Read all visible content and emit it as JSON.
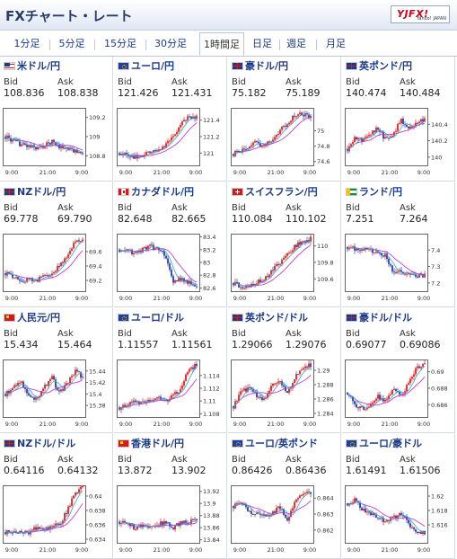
{
  "header": {
    "title": "FXチャート・レート",
    "logo": "YJFX!",
    "logo_sub": "Yahoo! JAPAN"
  },
  "tabs": [
    {
      "label": "1分足"
    },
    {
      "label": "5分足"
    },
    {
      "label": "15分足"
    },
    {
      "label": "30分足"
    },
    {
      "label": "1時間足",
      "active": true
    },
    {
      "label": "日足"
    },
    {
      "label": "週足"
    },
    {
      "label": "月足"
    }
  ],
  "labels": {
    "bid": "Bid",
    "ask": "Ask"
  },
  "colors": {
    "up": "#e02020",
    "down": "#2a3fa8",
    "ma": "#c02ad0",
    "ma2": "#2fa8c8",
    "link": "#1a3a8a"
  },
  "panels": [
    {
      "pair": "米ドル/円",
      "bid": "108.836",
      "ask": "108.838",
      "flag": "us-flag",
      "ticks": [
        "109.2",
        "109",
        "108.8"
      ],
      "x": [
        "9:00",
        "21:00",
        "9:00"
      ],
      "range": [
        108.7,
        109.3
      ],
      "trend": [
        109.0,
        108.95,
        108.92,
        108.9,
        108.88,
        108.9,
        108.95,
        108.9,
        108.87,
        108.85,
        108.84
      ]
    },
    {
      "pair": "ユーロ/円",
      "bid": "121.426",
      "ask": "121.431",
      "flag": "eu-flag",
      "ticks": [
        "121.4",
        "121.2",
        "121"
      ],
      "x": [
        "9:00",
        "21:00",
        "9:00"
      ],
      "range": [
        120.85,
        121.55
      ],
      "trend": [
        121.0,
        120.98,
        120.95,
        120.97,
        121.0,
        121.05,
        121.1,
        121.2,
        121.35,
        121.45,
        121.43
      ]
    },
    {
      "pair": "豪ドル/円",
      "bid": "75.182",
      "ask": "75.189",
      "flag": "au-flag",
      "ticks": [
        "75",
        "74.8",
        "74.6"
      ],
      "x": [
        "9:00",
        "21:00",
        "9:00"
      ],
      "range": [
        74.55,
        75.3
      ],
      "trend": [
        74.7,
        74.75,
        74.8,
        74.85,
        74.8,
        74.9,
        75.0,
        75.1,
        75.2,
        75.22,
        75.18
      ]
    },
    {
      "pair": "英ポンド/円",
      "bid": "140.474",
      "ask": "140.484",
      "flag": "uk-flag",
      "ticks": [
        "140.4",
        "140.2",
        "140"
      ],
      "x": [
        "9:00",
        "21:00",
        "9:00"
      ],
      "range": [
        139.9,
        140.6
      ],
      "trend": [
        140.1,
        140.25,
        140.2,
        140.3,
        140.35,
        140.2,
        140.3,
        140.45,
        140.35,
        140.4,
        140.47
      ]
    },
    {
      "pair": "NZドル/円",
      "bid": "69.778",
      "ask": "69.790",
      "flag": "nz-flag",
      "ticks": [
        "69.6",
        "69.4",
        "69.2"
      ],
      "x": [
        "9:00",
        "21:00",
        "9:00"
      ],
      "range": [
        69.05,
        69.85
      ],
      "trend": [
        69.3,
        69.25,
        69.2,
        69.22,
        69.2,
        69.25,
        69.3,
        69.4,
        69.55,
        69.75,
        69.78
      ]
    },
    {
      "pair": "カナダドル/円",
      "bid": "82.648",
      "ask": "82.665",
      "flag": "ca-flag",
      "ticks": [
        "83.4",
        "83.2",
        "83",
        "82.8",
        "82.6"
      ],
      "x": [
        "9:00",
        "21:00",
        "9:00"
      ],
      "range": [
        82.55,
        83.45
      ],
      "trend": [
        83.2,
        83.18,
        83.15,
        83.2,
        83.25,
        83.2,
        83.1,
        82.7,
        82.75,
        82.68,
        82.65
      ]
    },
    {
      "pair": "スイスフラン/円",
      "bid": "110.084",
      "ask": "110.102",
      "flag": "ch-flag",
      "ticks": [
        "110",
        "109.8",
        "109.6"
      ],
      "x": [
        "9:00",
        "21:00",
        "9:00"
      ],
      "range": [
        109.45,
        110.15
      ],
      "trend": [
        109.55,
        109.5,
        109.52,
        109.55,
        109.6,
        109.7,
        109.8,
        109.9,
        110.0,
        110.05,
        110.09
      ]
    },
    {
      "pair": "ランド/円",
      "bid": "7.251",
      "ask": "7.264",
      "flag": "za-flag",
      "ticks": [
        "7.4",
        "7.3",
        "7.2"
      ],
      "x": [
        "9:00",
        "21:00",
        "9:00"
      ],
      "range": [
        7.15,
        7.5
      ],
      "trend": [
        7.42,
        7.41,
        7.4,
        7.4,
        7.38,
        7.37,
        7.25,
        7.27,
        7.25,
        7.24,
        7.25
      ]
    },
    {
      "pair": "人民元/円",
      "bid": "15.434",
      "ask": "15.464",
      "flag": "cn-flag",
      "ticks": [
        "15.44",
        "15.42",
        "15.4",
        "15.38"
      ],
      "x": [
        "9:00",
        "21:00",
        "9:00"
      ],
      "range": [
        15.36,
        15.46
      ],
      "trend": [
        15.4,
        15.41,
        15.42,
        15.4,
        15.39,
        15.41,
        15.43,
        15.4,
        15.42,
        15.44,
        15.43
      ]
    },
    {
      "pair": "ユーロ/ドル",
      "bid": "1.11557",
      "ask": "1.11561",
      "flag": "eu-flag",
      "ticks": [
        "1.114",
        "1.112",
        "1.11",
        "1.108"
      ],
      "x": [
        "9:00",
        "21:00",
        "9:00"
      ],
      "range": [
        1.1075,
        1.1165
      ],
      "trend": [
        1.109,
        1.1095,
        1.11,
        1.1098,
        1.1102,
        1.1105,
        1.11,
        1.111,
        1.112,
        1.115,
        1.1156
      ]
    },
    {
      "pair": "英ポンド/ドル",
      "bid": "1.29066",
      "ask": "1.29076",
      "flag": "uk-flag",
      "ticks": [
        "1.29",
        "1.288",
        "1.286",
        "1.284"
      ],
      "x": [
        "9:00",
        "21:00",
        "9:00"
      ],
      "range": [
        1.2835,
        1.2915
      ],
      "trend": [
        1.285,
        1.287,
        1.2875,
        1.2865,
        1.286,
        1.288,
        1.2885,
        1.287,
        1.289,
        1.2905,
        1.2907
      ]
    },
    {
      "pair": "豪ドル/ドル",
      "bid": "0.69077",
      "ask": "0.69086",
      "flag": "au-flag",
      "ticks": [
        "0.69",
        "0.688",
        "0.686"
      ],
      "x": [
        "9:00",
        "21:00",
        "9:00"
      ],
      "range": [
        0.6845,
        0.6915
      ],
      "trend": [
        0.6875,
        0.686,
        0.6855,
        0.686,
        0.687,
        0.6865,
        0.688,
        0.687,
        0.689,
        0.6905,
        0.6908
      ]
    },
    {
      "pair": "NZドル/ドル",
      "bid": "0.64116",
      "ask": "0.64132",
      "flag": "nz-flag",
      "ticks": [
        "0.64",
        "0.638",
        "0.636",
        "0.634"
      ],
      "x": [
        "9:00",
        "21:00",
        "9:00"
      ],
      "range": [
        0.6335,
        0.6415
      ],
      "trend": [
        0.635,
        0.6352,
        0.6348,
        0.635,
        0.6355,
        0.6353,
        0.6358,
        0.636,
        0.638,
        0.6405,
        0.6412
      ]
    },
    {
      "pair": "香港ドル/円",
      "bid": "13.872",
      "ask": "13.902",
      "flag": "hk-flag",
      "ticks": [
        "13.92",
        "13.9",
        "13.88",
        "13.86",
        "13.84"
      ],
      "x": [
        "9:00",
        "21:00",
        "9:00"
      ],
      "range": [
        13.835,
        13.93
      ],
      "trend": [
        13.87,
        13.865,
        13.86,
        13.862,
        13.86,
        13.865,
        13.87,
        13.86,
        13.868,
        13.87,
        13.872
      ]
    },
    {
      "pair": "ユーロ/英ポンド",
      "bid": "0.86426",
      "ask": "0.86436",
      "flag": "eu-flag",
      "ticks": [
        "0.864",
        "0.863",
        "0.862"
      ],
      "x": [
        "9:00",
        "21:00",
        "9:00"
      ],
      "range": [
        0.8612,
        0.8648
      ],
      "trend": [
        0.8635,
        0.8638,
        0.8632,
        0.863,
        0.8628,
        0.863,
        0.8635,
        0.8625,
        0.8638,
        0.8642,
        0.8643
      ]
    },
    {
      "pair": "ユーロ/豪ドル",
      "bid": "1.61491",
      "ask": "1.61506",
      "flag": "eu-flag",
      "ticks": [
        "1.62",
        "1.618",
        "1.616"
      ],
      "x": [
        "9:00",
        "21:00",
        "9:00"
      ],
      "range": [
        1.6135,
        1.6215
      ],
      "trend": [
        1.619,
        1.6195,
        1.618,
        1.6175,
        1.617,
        1.6165,
        1.617,
        1.6175,
        1.616,
        1.615,
        1.6149
      ]
    }
  ]
}
